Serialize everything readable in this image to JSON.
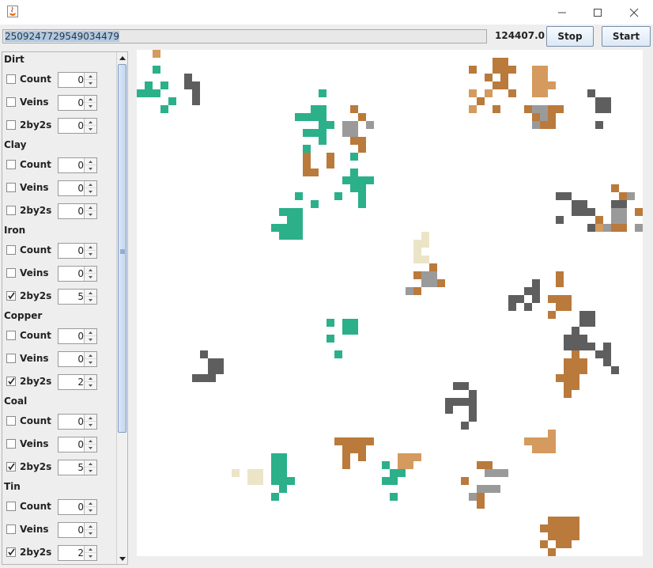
{
  "window": {
    "icon": "java-cup-icon",
    "controls": [
      "minimize-icon",
      "maximize-icon",
      "close-icon"
    ]
  },
  "toolbar": {
    "seed_value": "2509247729549034479",
    "score_text": "124407.0",
    "stop_label": "Stop",
    "start_label": "Start"
  },
  "sections": [
    {
      "title": "Dirt",
      "rows": [
        {
          "label": "Count",
          "checked": false,
          "value": "0"
        },
        {
          "label": "Veins",
          "checked": false,
          "value": "0"
        },
        {
          "label": "2by2s",
          "checked": false,
          "value": "0"
        }
      ]
    },
    {
      "title": "Clay",
      "rows": [
        {
          "label": "Count",
          "checked": false,
          "value": "0"
        },
        {
          "label": "Veins",
          "checked": false,
          "value": "0"
        },
        {
          "label": "2by2s",
          "checked": false,
          "value": "0"
        }
      ]
    },
    {
      "title": "Iron",
      "rows": [
        {
          "label": "Count",
          "checked": false,
          "value": "0"
        },
        {
          "label": "Veins",
          "checked": false,
          "value": "0"
        },
        {
          "label": "2by2s",
          "checked": true,
          "value": "5"
        }
      ]
    },
    {
      "title": "Copper",
      "rows": [
        {
          "label": "Count",
          "checked": false,
          "value": "0"
        },
        {
          "label": "Veins",
          "checked": false,
          "value": "0"
        },
        {
          "label": "2by2s",
          "checked": true,
          "value": "2"
        }
      ]
    },
    {
      "title": "Coal",
      "rows": [
        {
          "label": "Count",
          "checked": false,
          "value": "0"
        },
        {
          "label": "Veins",
          "checked": false,
          "value": "0"
        },
        {
          "label": "2by2s",
          "checked": true,
          "value": "5"
        }
      ]
    },
    {
      "title": "Tin",
      "rows": [
        {
          "label": "Count",
          "checked": false,
          "value": "0"
        },
        {
          "label": "Veins",
          "checked": false,
          "value": "0"
        },
        {
          "label": "2by2s",
          "checked": true,
          "value": "2"
        }
      ]
    }
  ],
  "map_colors": {
    "teal": "#2bb08a",
    "brown": "#b97a3b",
    "tan": "#d49a5e",
    "gray": "#9a9a9a",
    "dark": "#5e5e5e",
    "cream": "#ece4c7"
  }
}
